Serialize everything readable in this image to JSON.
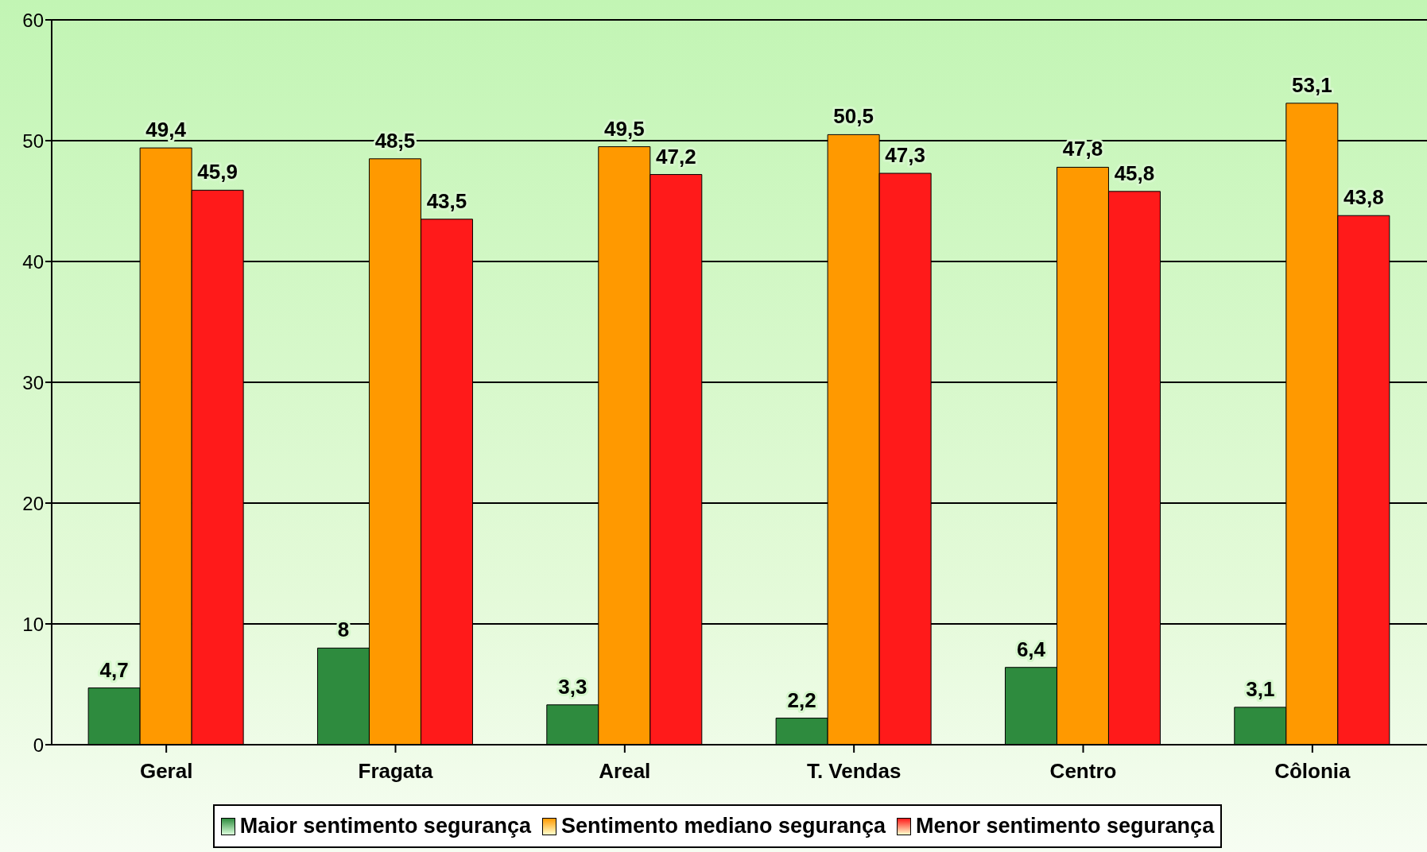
{
  "chart_data": {
    "type": "bar",
    "categories": [
      "Geral",
      "Fragata",
      "Areal",
      "T. Vendas",
      "Centro",
      "Côlonia"
    ],
    "series": [
      {
        "name": "Maior sentimento segurança",
        "color": "#2e8b3e",
        "values": [
          4.7,
          8,
          3.3,
          2.2,
          6.4,
          3.1
        ],
        "value_labels": [
          "4,7",
          "8",
          "3,3",
          "2,2",
          "6,4",
          "3,1"
        ]
      },
      {
        "name": "Sentimento mediano segurança",
        "color": "#ff9900",
        "values": [
          49.4,
          48.5,
          49.5,
          50.5,
          47.8,
          53.1
        ],
        "value_labels": [
          "49,4",
          "48,5",
          "49,5",
          "50,5",
          "47,8",
          "53,1"
        ]
      },
      {
        "name": "Menor sentimento segurança",
        "color": "#ff1a1a",
        "values": [
          45.9,
          43.5,
          47.2,
          47.3,
          45.8,
          43.8
        ],
        "value_labels": [
          "45,9",
          "43,5",
          "47,2",
          "47,3",
          "45,8",
          "43,8"
        ]
      }
    ],
    "ylim": [
      0,
      60
    ],
    "yticks": [
      0,
      10,
      20,
      30,
      40,
      50,
      60
    ],
    "grid": "y",
    "legend": "bottom"
  }
}
